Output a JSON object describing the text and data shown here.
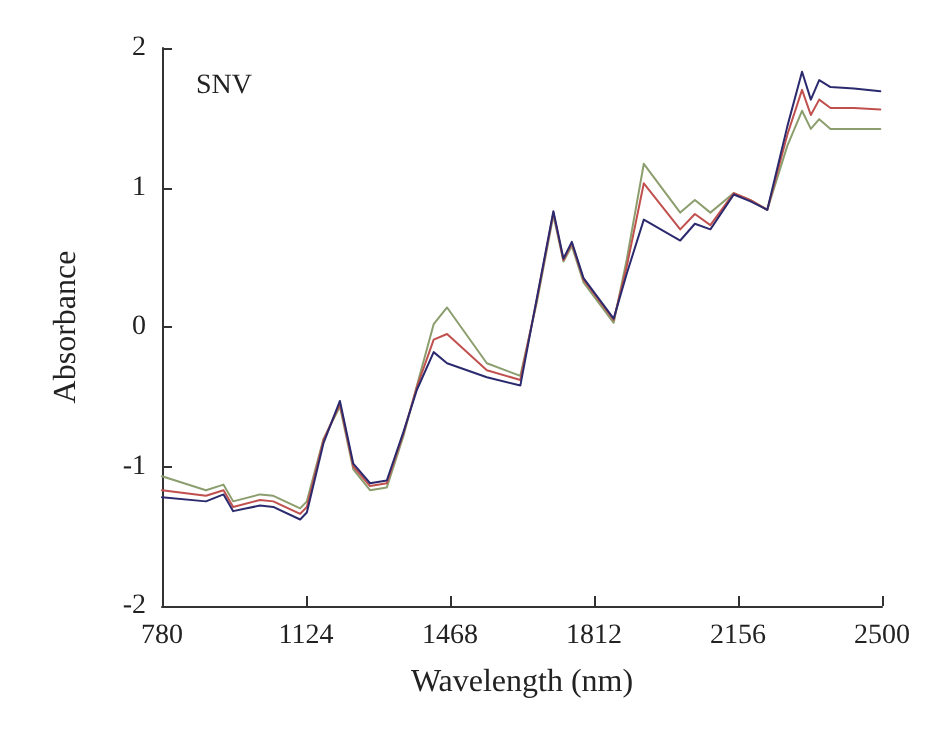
{
  "chart_data": {
    "type": "line",
    "xlabel": "Wavelength (nm)",
    "ylabel": "Absorbance",
    "annotations": [
      "SNV"
    ],
    "x": [
      780,
      885,
      927,
      950,
      1014,
      1046,
      1110,
      1126,
      1166,
      1205,
      1237,
      1277,
      1317,
      1357,
      1389,
      1429,
      1461,
      1556,
      1636,
      1675,
      1715,
      1739,
      1759,
      1787,
      1859,
      1890,
      1931,
      2018,
      2053,
      2090,
      2146,
      2186,
      2226,
      2274,
      2309,
      2330,
      2350,
      2377,
      2433,
      2496
    ],
    "series": [
      {
        "color": "#8c9e6e",
        "values": [
          -1.07,
          -1.17,
          -1.13,
          -1.25,
          -1.2,
          -1.21,
          -1.3,
          -1.25,
          -0.8,
          -0.57,
          -1.02,
          -1.17,
          -1.15,
          -0.78,
          -0.42,
          0.02,
          0.14,
          -0.26,
          -0.35,
          0.17,
          0.8,
          0.47,
          0.58,
          0.32,
          0.03,
          0.48,
          1.17,
          0.82,
          0.91,
          0.82,
          0.96,
          0.91,
          0.84,
          1.3,
          1.55,
          1.42,
          1.49,
          1.42,
          1.42,
          1.42
        ]
      },
      {
        "color": "#c0504d",
        "values": [
          -1.17,
          -1.21,
          -1.17,
          -1.29,
          -1.24,
          -1.25,
          -1.34,
          -1.29,
          -0.81,
          -0.55,
          -1.0,
          -1.14,
          -1.12,
          -0.76,
          -0.43,
          -0.09,
          -0.05,
          -0.31,
          -0.38,
          0.19,
          0.82,
          0.48,
          0.6,
          0.34,
          0.05,
          0.43,
          1.03,
          0.7,
          0.81,
          0.73,
          0.96,
          0.91,
          0.84,
          1.38,
          1.7,
          1.52,
          1.63,
          1.57,
          1.57,
          1.56
        ]
      },
      {
        "color": "#2b2a6e",
        "values": [
          -1.22,
          -1.25,
          -1.2,
          -1.32,
          -1.28,
          -1.29,
          -1.38,
          -1.33,
          -0.83,
          -0.53,
          -0.98,
          -1.12,
          -1.1,
          -0.75,
          -0.45,
          -0.18,
          -0.26,
          -0.36,
          -0.42,
          0.2,
          0.83,
          0.49,
          0.61,
          0.35,
          0.06,
          0.38,
          0.77,
          0.62,
          0.74,
          0.7,
          0.95,
          0.9,
          0.84,
          1.44,
          1.83,
          1.63,
          1.77,
          1.72,
          1.71,
          1.69
        ]
      }
    ],
    "xlim": [
      780,
      2500
    ],
    "xticks": [
      780,
      1124,
      1468,
      1812,
      2156,
      2500
    ],
    "ylim": [
      -2,
      2
    ],
    "yticks": [
      -2,
      -1,
      0,
      1,
      2
    ],
    "grid": false,
    "marker": "none",
    "line_style": "solid"
  }
}
